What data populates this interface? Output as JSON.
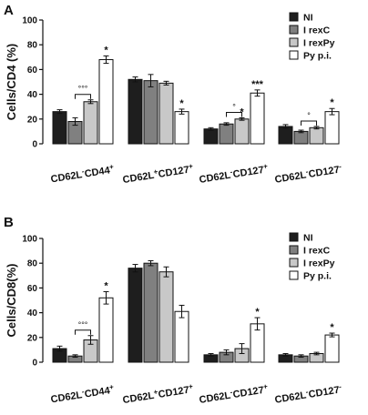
{
  "chart_data": [
    {
      "type": "bar",
      "panel": "A",
      "ylabel": "Cells/CD4 (%)",
      "ylim": [
        0,
        100
      ],
      "yticks": [
        "0",
        "20",
        "40",
        "60",
        "80",
        "100"
      ],
      "categories": [
        {
          "a": "CD62L",
          "as": "-",
          "b": "CD44",
          "bs": "+"
        },
        {
          "a": "CD62L",
          "as": "+",
          "b": "CD127",
          "bs": "+"
        },
        {
          "a": "CD62L",
          "as": "-",
          "b": "CD127",
          "bs": "+"
        },
        {
          "a": "CD62L",
          "as": "-",
          "b": "CD127",
          "bs": "-"
        }
      ],
      "series": [
        {
          "name": "NI",
          "color": "#1e1e1e",
          "values": [
            26,
            52,
            12,
            14
          ],
          "errors": [
            1.5,
            2,
            1,
            1.5
          ]
        },
        {
          "name": "I rexC",
          "color": "#808080",
          "values": [
            18,
            51,
            16,
            10
          ],
          "errors": [
            3,
            5,
            1,
            1
          ]
        },
        {
          "name": "I rexPy",
          "color": "#c8c8c8",
          "values": [
            34,
            49,
            20,
            13
          ],
          "errors": [
            1.5,
            1.5,
            1,
            1
          ]
        },
        {
          "name": "Py p.i.",
          "color": "#ffffff",
          "values": [
            68,
            26,
            41,
            26
          ],
          "errors": [
            3,
            2,
            2.5,
            2.5
          ]
        }
      ],
      "annotations": [
        {
          "category": 0,
          "series": 3,
          "text": "*"
        },
        {
          "category": 1,
          "series": 3,
          "text": "*"
        },
        {
          "category": 2,
          "series": 2,
          "text": "*"
        },
        {
          "category": 2,
          "series": 3,
          "text": "***"
        },
        {
          "category": 3,
          "series": 3,
          "text": "*"
        }
      ],
      "brackets": [
        {
          "category": 0,
          "from": 1,
          "to": 2,
          "text": "°°°"
        },
        {
          "category": 2,
          "from": 1,
          "to": 2,
          "text": "°"
        },
        {
          "category": 3,
          "from": 1,
          "to": 2,
          "text": "°"
        }
      ]
    },
    {
      "type": "bar",
      "panel": "B",
      "ylabel": "Cells/CD8(%)",
      "ylim": [
        0,
        100
      ],
      "yticks": [
        "0",
        "20",
        "40",
        "60",
        "80",
        "100"
      ],
      "categories": [
        {
          "a": "CD62L",
          "as": "-",
          "b": "CD44",
          "bs": "+"
        },
        {
          "a": "CD62L",
          "as": "+",
          "b": "CD127",
          "bs": "+"
        },
        {
          "a": "CD62L",
          "as": "-",
          "b": "CD127",
          "bs": "+"
        },
        {
          "a": "CD62L",
          "as": "-",
          "b": "CD127",
          "bs": "-"
        }
      ],
      "series": [
        {
          "name": "NI",
          "color": "#1e1e1e",
          "values": [
            11,
            76,
            6,
            6
          ],
          "errors": [
            2,
            3,
            1,
            1
          ]
        },
        {
          "name": "I rexC",
          "color": "#808080",
          "values": [
            5,
            80,
            8,
            5
          ],
          "errors": [
            1,
            2,
            2,
            1
          ]
        },
        {
          "name": "I rexPy",
          "color": "#c8c8c8",
          "values": [
            18,
            73,
            11,
            7
          ],
          "errors": [
            3.5,
            4,
            4,
            1
          ]
        },
        {
          "name": "Py p.i.",
          "color": "#ffffff",
          "values": [
            52,
            41,
            31,
            22
          ],
          "errors": [
            5,
            5,
            5,
            1.5
          ]
        }
      ],
      "annotations": [
        {
          "category": 0,
          "series": 3,
          "text": "*"
        },
        {
          "category": 2,
          "series": 3,
          "text": "*"
        },
        {
          "category": 3,
          "series": 3,
          "text": "*"
        }
      ],
      "brackets": [
        {
          "category": 0,
          "from": 1,
          "to": 2,
          "text": "°°°"
        }
      ]
    }
  ]
}
